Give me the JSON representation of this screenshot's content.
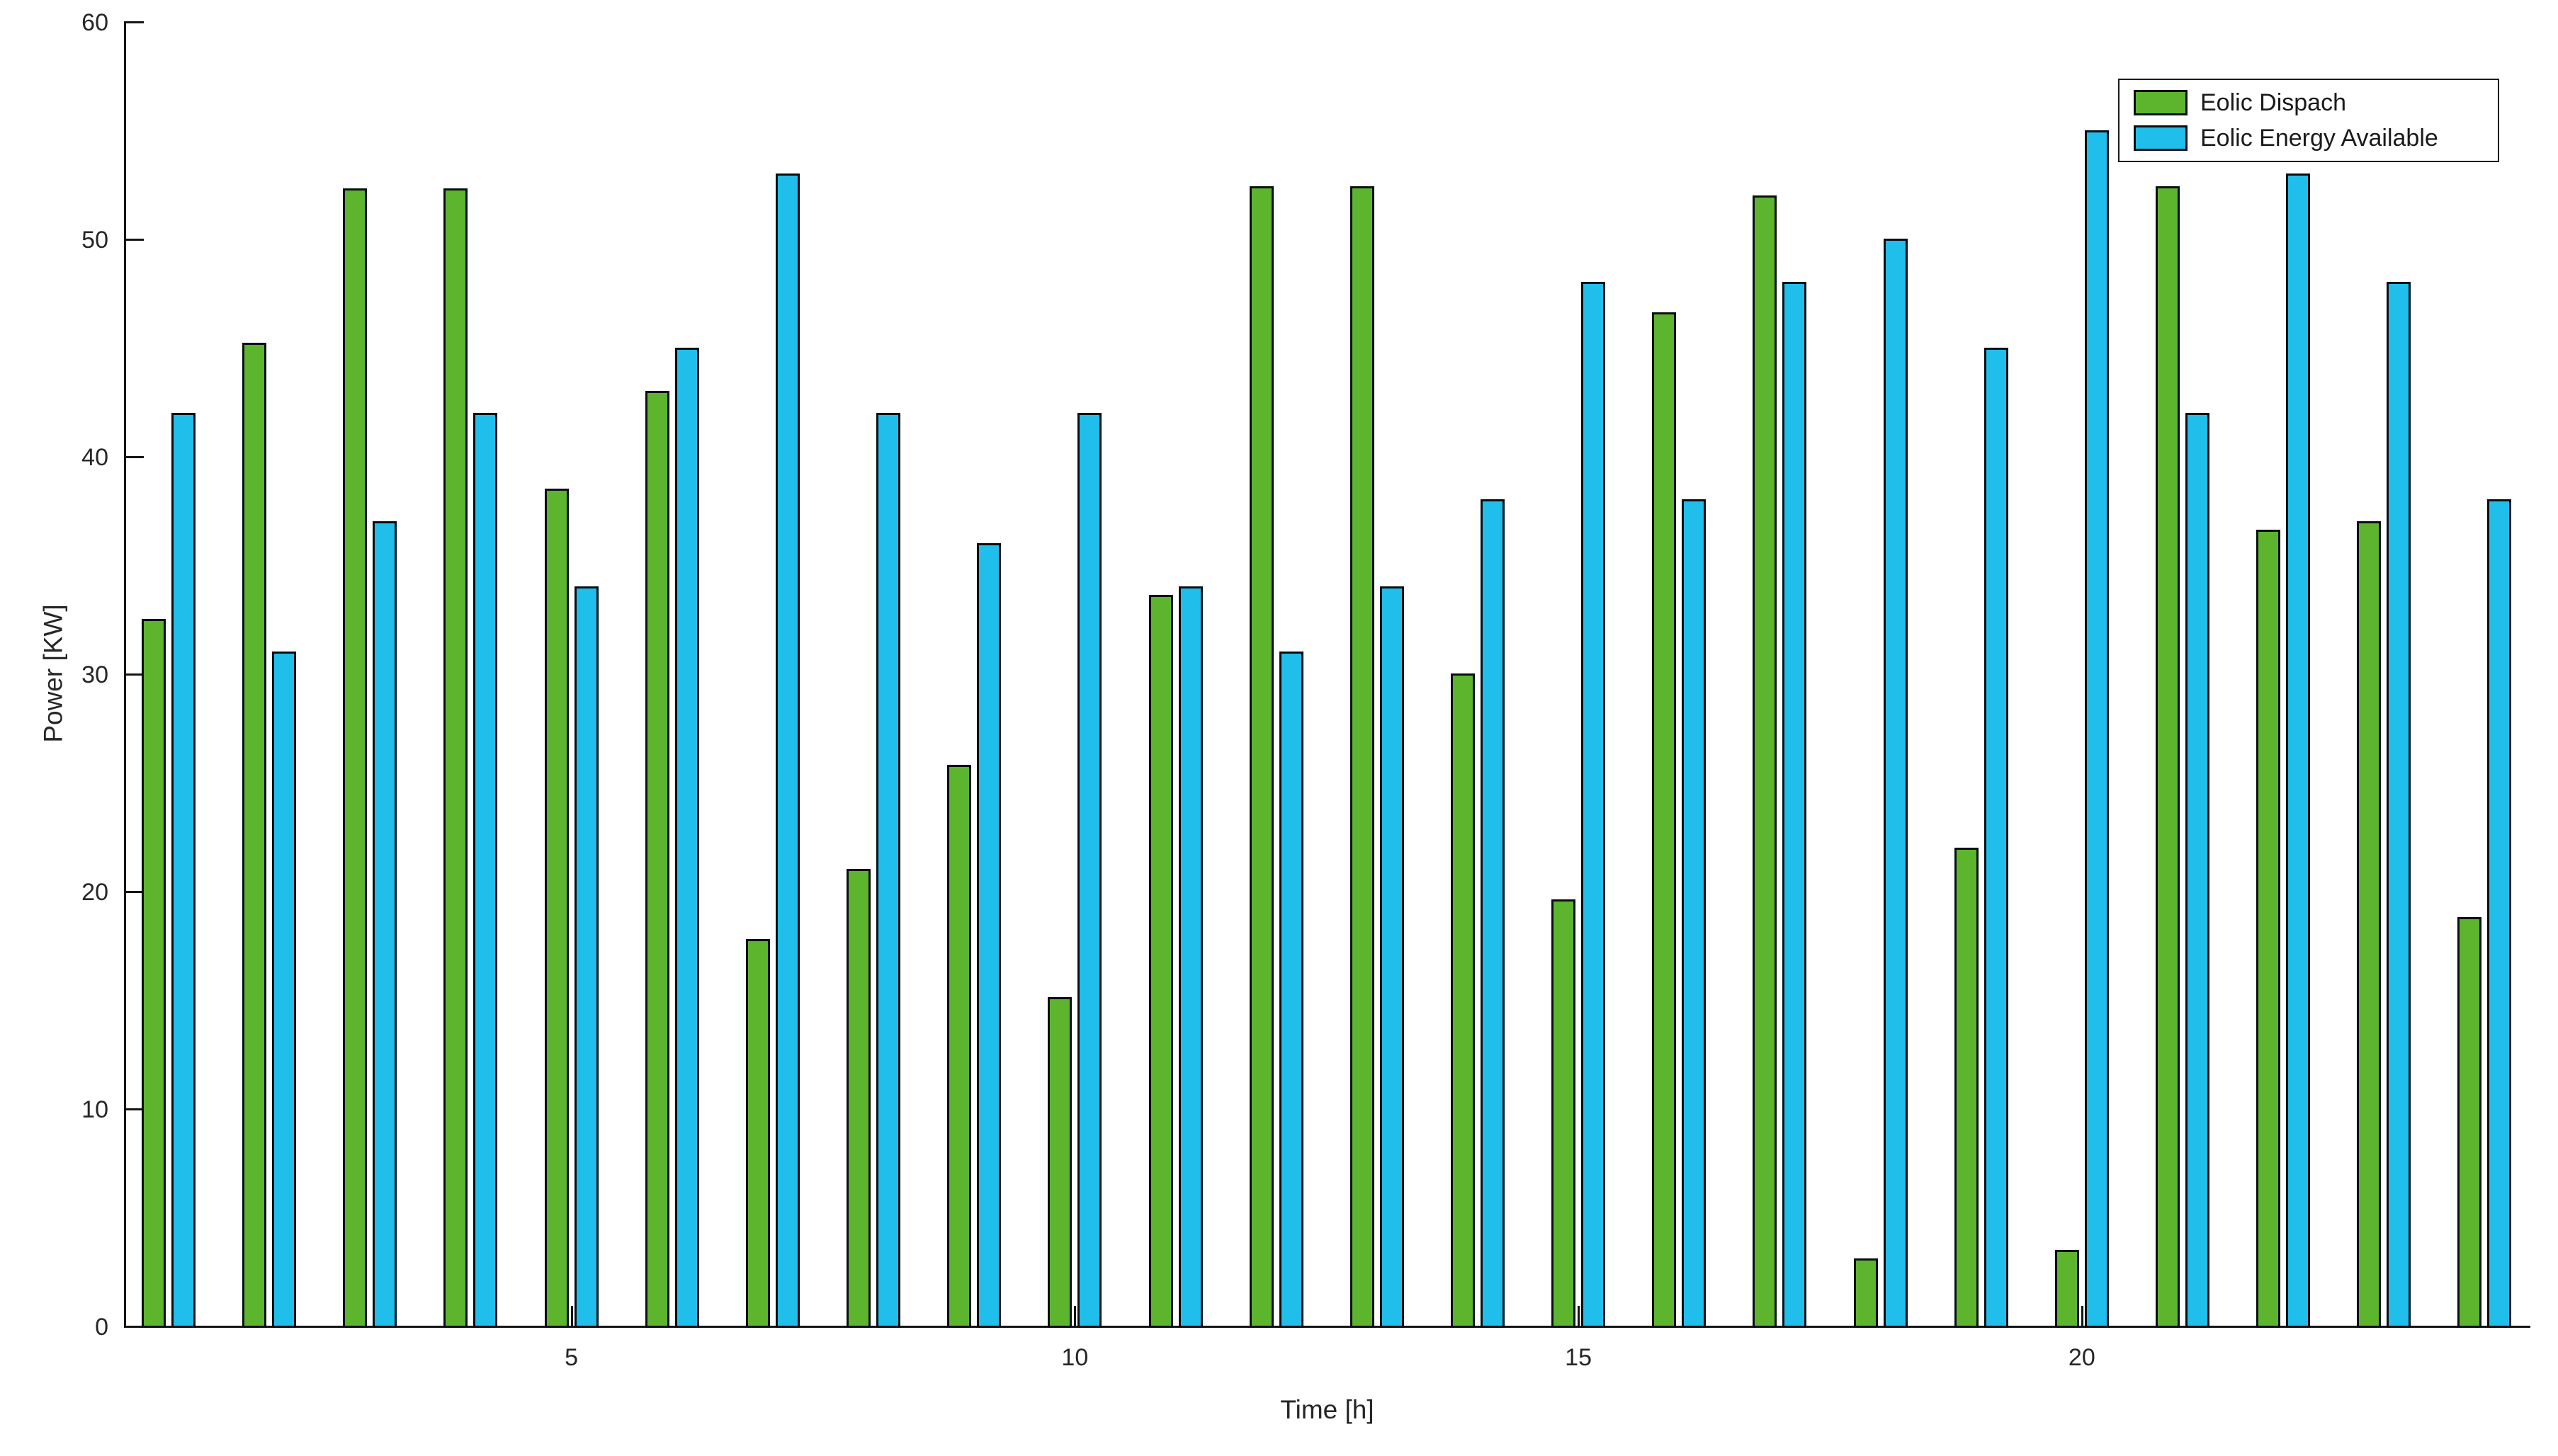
{
  "figure": {
    "background": "#ffffff",
    "axis_color": "#151515",
    "text_color": "#262626",
    "xlabel": "Time [h]",
    "ylabel": "Power [KW]",
    "y_tick_labels": [
      "0",
      "10",
      "20",
      "30",
      "40",
      "50",
      "60"
    ],
    "x_tick_labels": [
      "5",
      "10",
      "15",
      "20"
    ],
    "legend": {
      "entries": [
        {
          "label": "Eolic Dispach",
          "color": "#5CB52D"
        },
        {
          "label": "Eolic Energy Available",
          "color": "#1FBEEB"
        }
      ]
    }
  },
  "chart_data": {
    "type": "bar",
    "title": "",
    "xlabel": "Time [h]",
    "ylabel": "Power [KW]",
    "x": [
      1,
      2,
      3,
      4,
      5,
      6,
      7,
      8,
      9,
      10,
      11,
      12,
      13,
      14,
      15,
      16,
      17,
      18,
      19,
      20,
      21,
      22,
      23,
      24
    ],
    "series": [
      {
        "name": "Eolic Dispach",
        "color": "#5CB52D",
        "values": [
          32.5,
          45.2,
          52.3,
          52.3,
          38.5,
          43.0,
          17.8,
          21.0,
          25.8,
          15.1,
          33.6,
          52.4,
          52.4,
          30.0,
          19.6,
          46.6,
          52.0,
          3.1,
          22.0,
          3.5,
          52.4,
          36.6,
          37.0,
          18.8
        ]
      },
      {
        "name": "Eolic Energy Available",
        "color": "#1FBEEB",
        "values": [
          42,
          31,
          37,
          42,
          34,
          45,
          53,
          42,
          36,
          42,
          34,
          31,
          34,
          38,
          48,
          38,
          48,
          50,
          45,
          55,
          42,
          53,
          48,
          38
        ]
      }
    ],
    "ylim": [
      0,
      60
    ],
    "y_ticks": [
      0,
      10,
      20,
      30,
      40,
      50,
      60
    ],
    "x_ticks": [
      5,
      10,
      15,
      20
    ],
    "grid": false,
    "bar_edge_color": "#0a0f14",
    "legend_position": "top-right"
  }
}
